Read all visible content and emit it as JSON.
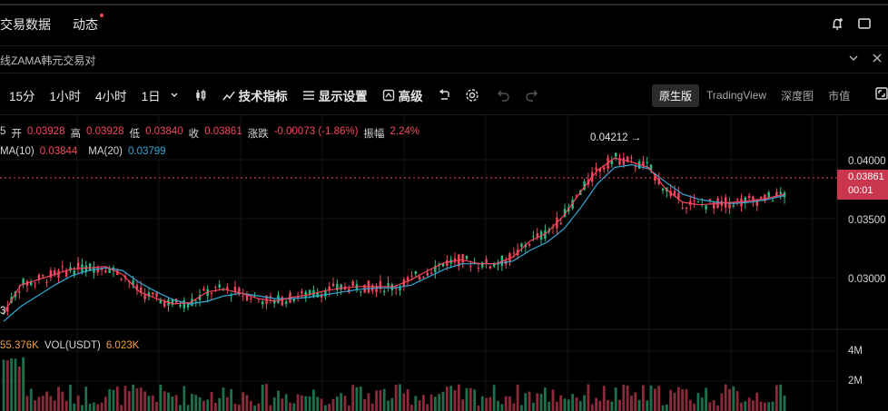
{
  "tabs": [
    {
      "label": "交易数据"
    },
    {
      "label": "动态"
    }
  ],
  "pair": {
    "title": "线ZAMA韩元交易对"
  },
  "toolbar": {
    "intervals": [
      "15分",
      "1小时",
      "4小时",
      "1日"
    ],
    "indicators_label": "技术指标",
    "display_settings_label": "显示设置",
    "advanced_label": "高级"
  },
  "views": [
    {
      "label": "原生版",
      "active": true
    },
    {
      "label": "TradingView",
      "active": false
    },
    {
      "label": "深度图",
      "active": false
    },
    {
      "label": "市值",
      "active": false
    }
  ],
  "ohlc": {
    "prefix": "5",
    "open_label": "开",
    "open": "0.03928",
    "high_label": "高",
    "high": "0.03928",
    "low_label": "低",
    "low": "0.03840",
    "close_label": "收",
    "close": "0.03861",
    "change_label": "涨跌",
    "change": "-0.00073 (-1.86%)",
    "amplitude_label": "振幅",
    "amplitude": "2.24%"
  },
  "ma": {
    "ma10_label": "MA(10)",
    "ma10": "0.03844",
    "ma20_label": "MA(20)",
    "ma20": "0.03799"
  },
  "vol": {
    "left_value": "55.376K",
    "vol_label": "VOL(USDT)",
    "vol": "6.023K"
  },
  "price_axis": [
    "0.04000",
    "0.03500",
    "0.03000"
  ],
  "volume_axis": [
    "4M",
    "2M"
  ],
  "current_price": {
    "price": "0.03861",
    "countdown": "00:01"
  },
  "annotations": {
    "high_marker": "0.04212 →",
    "left_marker": "3"
  },
  "colors": {
    "up": "#2ebd85",
    "down": "#f6465d",
    "ma10": "#f6465d",
    "ma20": "#33a8d8",
    "bg": "#000000"
  },
  "chart_data": {
    "type": "candlestick",
    "ylim": [
      0.0285,
      0.0445
    ],
    "series": [
      {
        "name": "MA(10)",
        "values": [
          0.0297,
          0.0318,
          0.0322,
          0.0326,
          0.033,
          0.0331,
          0.0332,
          0.0326,
          0.0313,
          0.0308,
          0.0304,
          0.0305,
          0.0313,
          0.0315,
          0.0312,
          0.0308,
          0.0306,
          0.0309,
          0.0311,
          0.0314,
          0.0316,
          0.0317,
          0.0317,
          0.0317,
          0.0322,
          0.0329,
          0.0335,
          0.0337,
          0.0334,
          0.0334,
          0.0339,
          0.0351,
          0.0357,
          0.037,
          0.0388,
          0.0404,
          0.0413,
          0.041,
          0.0406,
          0.039,
          0.038,
          0.0378,
          0.0379,
          0.038,
          0.0381,
          0.0383,
          0.0386
        ]
      },
      {
        "name": "MA(20)",
        "values": [
          0.0291,
          0.0302,
          0.031,
          0.0318,
          0.0325,
          0.0329,
          0.0331,
          0.0329,
          0.032,
          0.0313,
          0.0307,
          0.0304,
          0.0306,
          0.031,
          0.0312,
          0.031,
          0.0308,
          0.0308,
          0.0309,
          0.0311,
          0.0313,
          0.0315,
          0.0316,
          0.0316,
          0.0318,
          0.0324,
          0.033,
          0.0334,
          0.0334,
          0.0334,
          0.0336,
          0.0344,
          0.035,
          0.036,
          0.0376,
          0.0394,
          0.0406,
          0.0408,
          0.0405,
          0.0395,
          0.0386,
          0.0382,
          0.038,
          0.0379,
          0.038,
          0.0382,
          0.0385
        ]
      }
    ]
  }
}
